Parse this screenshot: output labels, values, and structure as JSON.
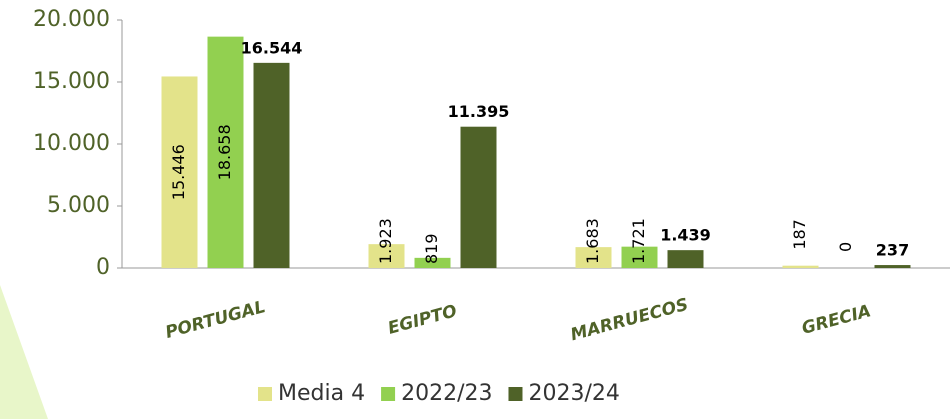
{
  "chart_data": {
    "type": "bar",
    "categories": [
      "PORTUGAL",
      "EGIPTO",
      "MARRUECOS",
      "GRECIA"
    ],
    "series": [
      {
        "name": "Media 4",
        "color": "#e3e38a",
        "values": [
          15446,
          1923,
          1683,
          187
        ],
        "value_labels": [
          "15.446",
          "1.923",
          "1.683",
          "187"
        ]
      },
      {
        "name": "2022/23",
        "color": "#92d050",
        "values": [
          18658,
          819,
          1721,
          0
        ],
        "value_labels": [
          "18.658",
          "819",
          "1.721",
          "0"
        ]
      },
      {
        "name": "2023/24",
        "color": "#4f6228",
        "values": [
          16544,
          11395,
          1439,
          237
        ],
        "value_labels": [
          "16.544",
          "11.395",
          "1.439",
          "237"
        ]
      }
    ],
    "ylim": [
      0,
      20000
    ],
    "yticks": [
      0,
      {
        "value": 5000,
        "label": "5.000"
      },
      {
        "value": 10000,
        "label": "10.000"
      },
      {
        "value": 15000,
        "label": "15.000"
      },
      {
        "value": 20000,
        "label": "20.000"
      }
    ],
    "grid": false,
    "legend": "bottom"
  }
}
